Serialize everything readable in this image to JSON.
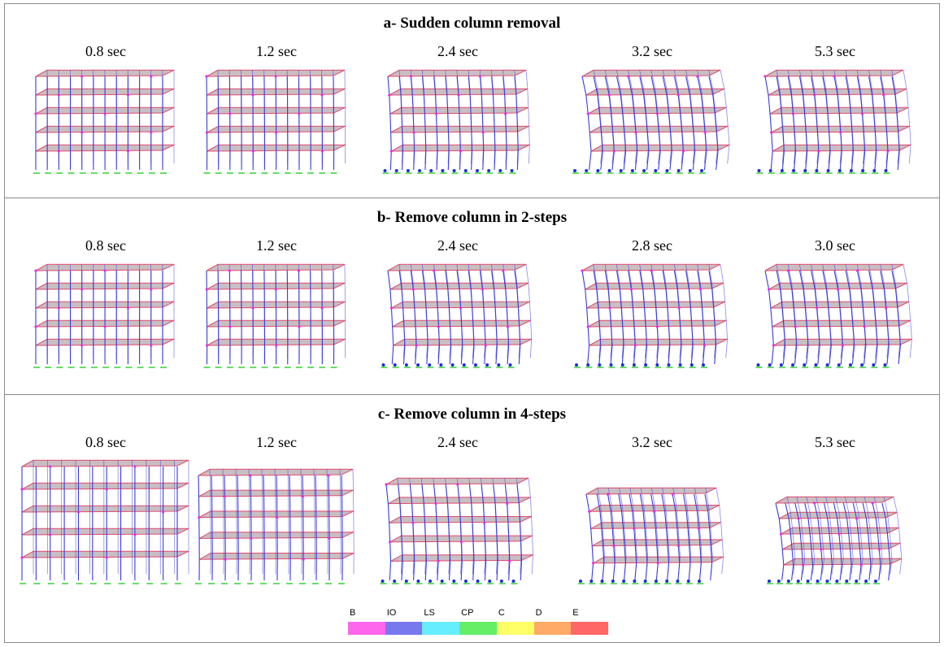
{
  "rows": [
    {
      "title": "a- Sudden column removal",
      "panels": [
        {
          "time": "0.8 sec",
          "deform": 0.0
        },
        {
          "time": "1.2 sec",
          "deform": 0.05
        },
        {
          "time": "2.4 sec",
          "deform": 0.35
        },
        {
          "time": "3.2 sec",
          "deform": 0.9
        },
        {
          "time": "5.3 sec",
          "deform": 0.75
        }
      ]
    },
    {
      "title": "b- Remove column in 2-steps",
      "panels": [
        {
          "time": "0.8 sec",
          "deform": 0.0
        },
        {
          "time": "1.2 sec",
          "deform": 0.05
        },
        {
          "time": "2.4 sec",
          "deform": 0.55
        },
        {
          "time": "2.8 sec",
          "deform": 0.7
        },
        {
          "time": "3.0 sec",
          "deform": 0.85
        }
      ]
    },
    {
      "title": "c- Remove column in 4-steps",
      "panels": [
        {
          "time": "0.8 sec",
          "deform": 0.0
        },
        {
          "time": "1.2 sec",
          "deform": 0.1
        },
        {
          "time": "2.4 sec",
          "deform": 0.45
        },
        {
          "time": "3.2 sec",
          "deform": 0.7
        },
        {
          "time": "5.3 sec",
          "deform": 0.8
        }
      ]
    }
  ],
  "legend": {
    "items": [
      {
        "label": "B",
        "color": "#ff66ee"
      },
      {
        "label": "IO",
        "color": "#7777ee"
      },
      {
        "label": "LS",
        "color": "#66eeff"
      },
      {
        "label": "CP",
        "color": "#66ee66"
      },
      {
        "label": "C",
        "color": "#ffff66"
      },
      {
        "label": "D",
        "color": "#ffaa66"
      },
      {
        "label": "E",
        "color": "#ff6666"
      }
    ]
  },
  "colors": {
    "slab": "#c9bfc3",
    "column": "#3b3bd9",
    "beam": "#e04a6a",
    "hinge": "#e62ee6",
    "support": "#66dd66",
    "damaged_hinge": "#1a2fd9"
  }
}
